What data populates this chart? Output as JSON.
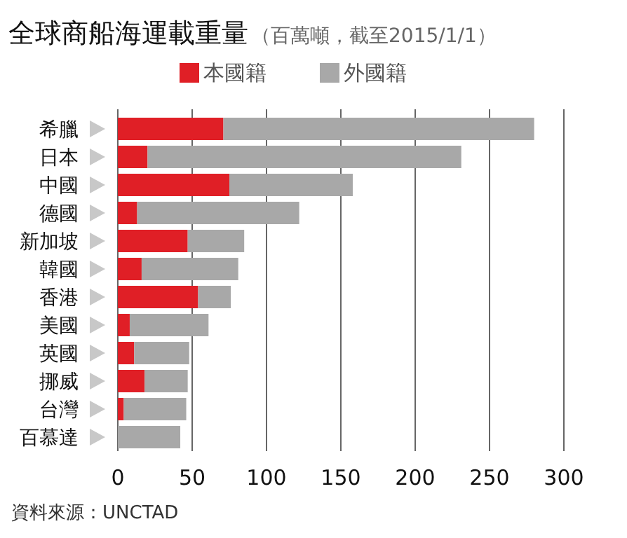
{
  "chart_data": {
    "type": "bar",
    "orientation": "horizontal",
    "stacked": true,
    "title": "全球商船海運載重量",
    "subtitle": "（百萬噸，截至2015/1/1）",
    "categories": [
      "希臘",
      "日本",
      "中國",
      "德國",
      "新加坡",
      "韓國",
      "香港",
      "美國",
      "英國",
      "挪威",
      "台灣",
      "百慕達"
    ],
    "series": [
      {
        "name": "本國籍",
        "color": "#e01f26",
        "values": [
          71,
          20,
          75,
          13,
          47,
          16,
          54,
          8,
          11,
          18,
          4,
          0
        ]
      },
      {
        "name": "外國籍",
        "color": "#a8a8a8",
        "values": [
          209,
          211,
          83,
          109,
          38,
          65,
          22,
          53,
          37,
          29,
          42,
          42
        ]
      }
    ],
    "xlim": [
      0,
      300
    ],
    "xticks": [
      0,
      50,
      100,
      150,
      200,
      250,
      300
    ],
    "grid": "x",
    "legend": "top",
    "annotations": [
      "資料來源：UNCTAD"
    ]
  }
}
